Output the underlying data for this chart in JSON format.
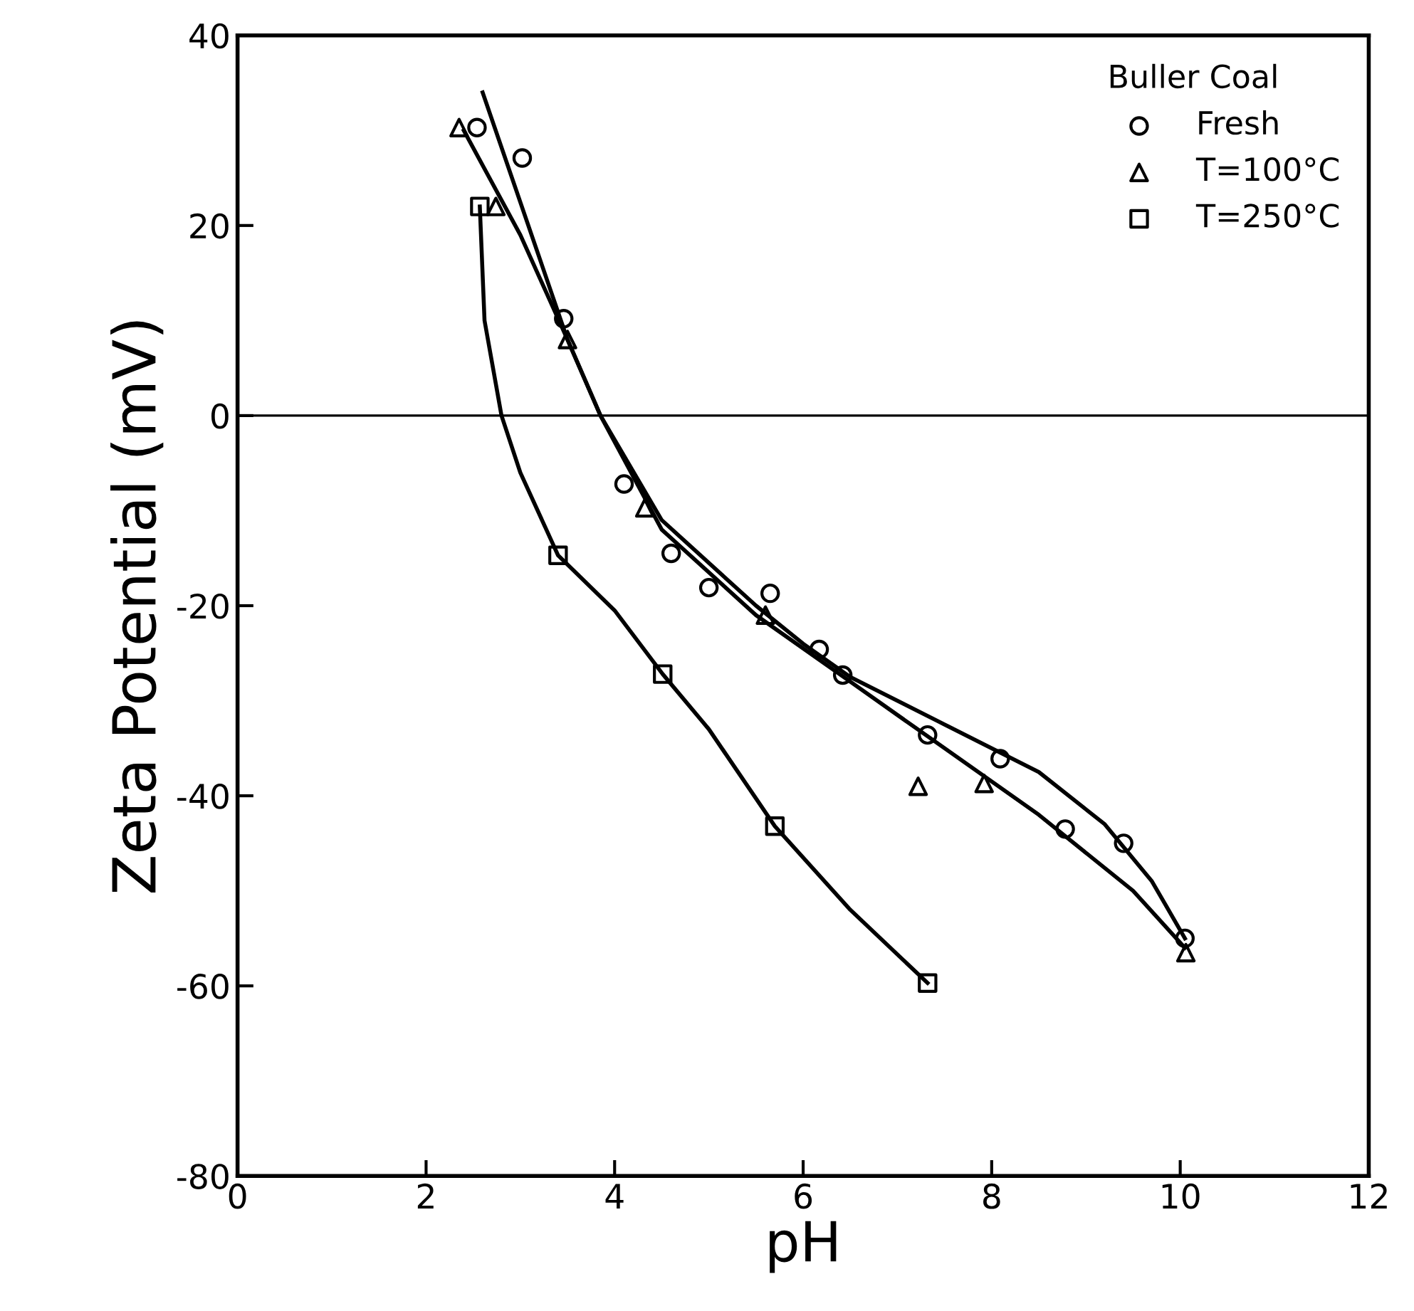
{
  "chart_data": {
    "type": "scatter",
    "xlabel": "pH",
    "ylabel": "Zeta Potential (mV)",
    "legend_title": "Buller Coal",
    "legend": "top right",
    "grid": false,
    "xlim": [
      0,
      12
    ],
    "xticks": [
      0,
      2,
      4,
      6,
      8,
      10,
      12
    ],
    "ylim": [
      -80,
      40
    ],
    "yticks": [
      -80,
      -60,
      -40,
      -20,
      0,
      20,
      40
    ],
    "ref_lines": [
      {
        "axis": "y",
        "value": 0,
        "color": "#000000"
      }
    ],
    "series": [
      {
        "name": "Fresh",
        "marker": "circle",
        "color": "#000000",
        "x": [
          2.54,
          3.02,
          3.46,
          4.1,
          4.6,
          5.0,
          5.65,
          6.17,
          6.42,
          7.32,
          8.09,
          8.78,
          9.4,
          10.05
        ],
        "values": [
          30.3,
          27.1,
          10.2,
          -7.2,
          -14.5,
          -18.1,
          -18.7,
          -24.6,
          -27.3,
          -33.6,
          -36.1,
          -43.5,
          -45,
          -55
        ]
      },
      {
        "name": "T=100°C",
        "marker": "triangle",
        "color": "#000000",
        "x": [
          2.35,
          2.74,
          3.5,
          4.32,
          5.6,
          7.22,
          7.92,
          10.06
        ],
        "values": [
          30.3,
          22,
          8,
          -9.7,
          -21,
          -39,
          -38.7,
          -56.5
        ]
      },
      {
        "name": "T=250°C",
        "marker": "square",
        "color": "#000000",
        "x": [
          2.57,
          3.4,
          4.51,
          5.7,
          7.32
        ],
        "values": [
          22,
          -14.7,
          -27.2,
          -43.2,
          -59.7
        ]
      },
      {
        "type": "line",
        "marker": "none",
        "color": "#000000",
        "x": [
          2.6,
          3.5,
          3.85,
          4.5,
          5.5,
          6.0,
          6.5,
          7.5,
          8.5,
          9.2,
          9.7,
          10.05
        ],
        "values": [
          34,
          8,
          0,
          -11,
          -20,
          -24,
          -27.5,
          -32.5,
          -37.5,
          -43,
          -49,
          -55
        ]
      },
      {
        "type": "line",
        "marker": "none",
        "color": "#000000",
        "x": [
          2.4,
          3.0,
          3.5,
          3.85,
          4.5,
          5.5,
          6.5,
          7.5,
          8.5,
          9.5,
          10.05
        ],
        "values": [
          30,
          19,
          8,
          0,
          -12,
          -21,
          -28,
          -35,
          -42,
          -50,
          -56
        ]
      },
      {
        "type": "line",
        "marker": "none",
        "color": "#000000",
        "x": [
          2.57,
          2.62,
          2.8,
          3.0,
          3.4,
          4.0,
          4.51,
          5.0,
          5.7,
          6.5,
          7.32
        ],
        "values": [
          22,
          10,
          0,
          -6,
          -14.7,
          -20.5,
          -27.2,
          -33,
          -43.2,
          -52,
          -59.7
        ]
      }
    ]
  }
}
